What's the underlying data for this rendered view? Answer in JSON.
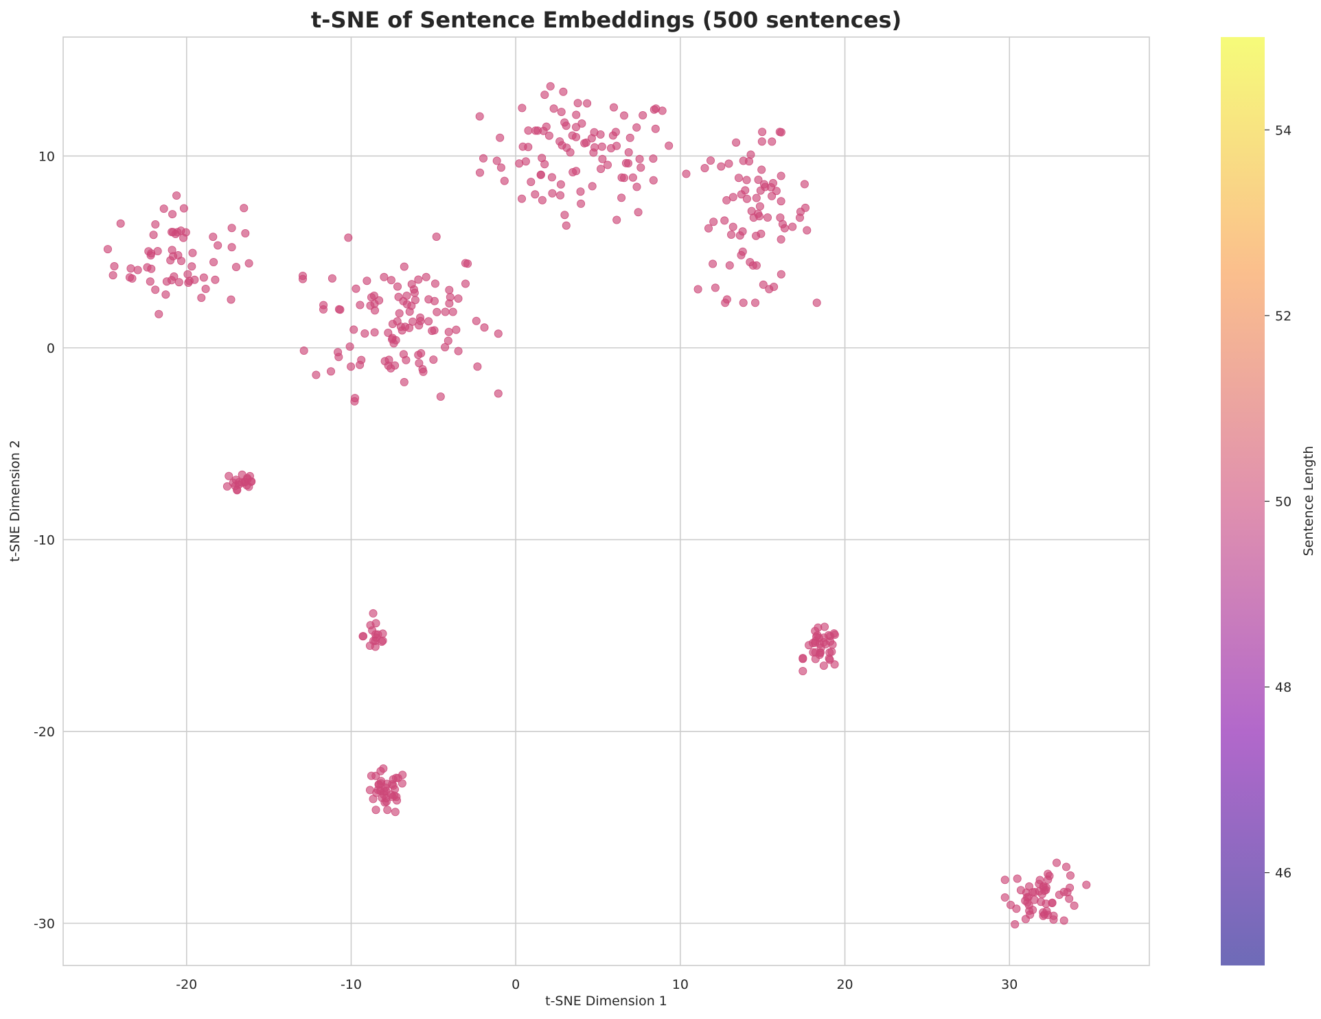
{
  "chart_data": {
    "type": "scatter",
    "title": "t-SNE of Sentence Embeddings (500 sentences)",
    "xlabel": "t-SNE Dimension 1",
    "ylabel": "t-SNE Dimension 2",
    "xlim": [
      -27.5,
      38.5
    ],
    "ylim": [
      -32.2,
      16.2
    ],
    "xticks": [
      -20,
      -10,
      0,
      10,
      20,
      30
    ],
    "yticks": [
      -30,
      -20,
      -10,
      0,
      10
    ],
    "grid": true,
    "point_color": "#cc4778",
    "point_opacity": 0.65,
    "colorbar": {
      "label": "Sentence Length",
      "range": [
        45,
        55
      ],
      "ticks": [
        46,
        48,
        50,
        52,
        54
      ],
      "colormap": "plasma"
    },
    "clusters": [
      {
        "center": [
          4.0,
          10.0
        ],
        "spread": [
          4.0,
          2.2
        ],
        "count": 95
      },
      {
        "center": [
          -7.0,
          1.5
        ],
        "spread": [
          3.6,
          2.6
        ],
        "count": 105
      },
      {
        "center": [
          -20.5,
          4.8
        ],
        "spread": [
          2.6,
          1.9
        ],
        "count": 60
      },
      {
        "center": [
          14.5,
          6.8
        ],
        "spread": [
          2.3,
          2.7
        ],
        "count": 75
      },
      {
        "center": [
          -16.7,
          -7.0
        ],
        "spread": [
          0.7,
          0.5
        ],
        "count": 20
      },
      {
        "center": [
          -8.5,
          -15.0
        ],
        "spread": [
          0.5,
          0.7
        ],
        "count": 16
      },
      {
        "center": [
          -7.9,
          -23.2
        ],
        "spread": [
          0.85,
          0.8
        ],
        "count": 38
      },
      {
        "center": [
          18.6,
          -15.7
        ],
        "spread": [
          0.7,
          0.7
        ],
        "count": 36
      },
      {
        "center": [
          32.2,
          -28.5
        ],
        "spread": [
          1.5,
          1.0
        ],
        "count": 55
      }
    ]
  }
}
